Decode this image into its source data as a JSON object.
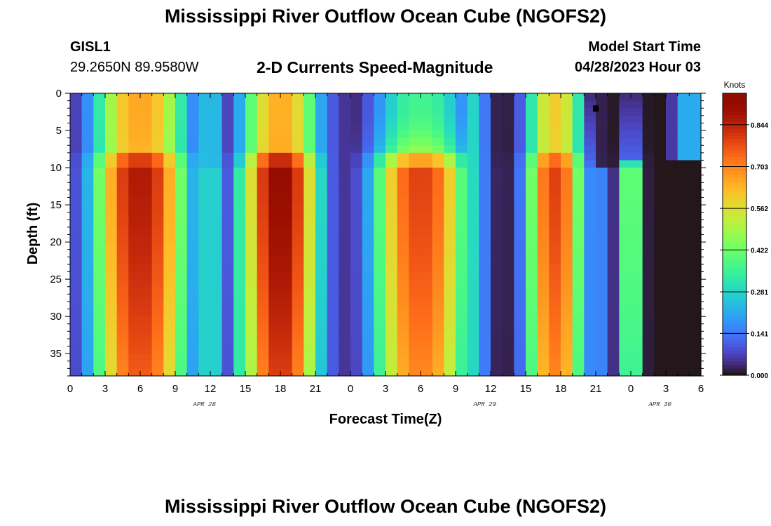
{
  "header": {
    "title": "Mississippi River Outflow Ocean Cube (NGOFS2)",
    "station": "GISL1",
    "coords": "29.2650N  89.9580W",
    "variable": "2-D Currents Speed-Magnitude",
    "model_start_label": "Model Start Time",
    "model_start_value": "04/28/2023 Hour 03"
  },
  "footer": {
    "title": "Mississippi River Outflow Ocean Cube (NGOFS2)"
  },
  "chart_data": {
    "type": "heatmap",
    "title": "2-D Currents Speed-Magnitude",
    "xlabel": "Forecast Time(Z)",
    "ylabel": "Depth (ft)",
    "x_range_hours": [
      0,
      54
    ],
    "y_range_ft": [
      0,
      38
    ],
    "y_inverted": true,
    "x_ticks": [
      "0",
      "3",
      "6",
      "9",
      "12",
      "15",
      "18",
      "21",
      "0",
      "3",
      "6",
      "9",
      "12",
      "15",
      "18",
      "21",
      "0",
      "3",
      "6"
    ],
    "y_ticks": [
      "0",
      "5",
      "10",
      "15",
      "20",
      "25",
      "30",
      "35"
    ],
    "date_labels": [
      {
        "label": "APR 28",
        "hour": 11.5
      },
      {
        "label": "APR 29",
        "hour": 35.5
      },
      {
        "label": "APR 30",
        "hour": 50.5
      }
    ],
    "colorbar": {
      "title": "Knots",
      "ticks": [
        "0.000",
        "0.141",
        "0.281",
        "0.422",
        "0.562",
        "0.703",
        "0.844"
      ],
      "tick_values": [
        0,
        0.141,
        0.281,
        0.422,
        0.562,
        0.703,
        0.844
      ],
      "range": [
        0,
        0.95
      ],
      "colormap": "turbo"
    },
    "field_model": {
      "grid_cols": 54,
      "grid_rows": 38,
      "surface_depth_ft": 10,
      "pulses": [
        {
          "peak_hour": 6,
          "width_hours": 4.0,
          "bottom_peak": 0.87,
          "surface_peak": 0.66
        },
        {
          "peak_hour": 18,
          "width_hours": 3.3,
          "bottom_peak": 0.92,
          "surface_peak": 0.65
        },
        {
          "peak_hour": 30,
          "width_hours": 4.0,
          "bottom_peak": 0.8,
          "surface_peak": 0.36
        },
        {
          "peak_hour": 41.5,
          "width_hours": 2.4,
          "bottom_peak": 0.8,
          "surface_peak": 0.6
        },
        {
          "peak_hour": 48,
          "width_hours": 0.9,
          "bottom_peak": 0.5,
          "surface_peak": 0.12
        }
      ],
      "gap_hours": [
        12,
        15,
        22.5,
        34.5,
        45
      ],
      "gap_depth_values": [
        {
          "hour": 12,
          "surface": 0.3,
          "bottom": 0.35
        },
        {
          "hour": 15,
          "surface": 0.25,
          "bottom": 0.4
        },
        {
          "hour": 22.5,
          "surface": 0.1,
          "bottom": 0.1
        },
        {
          "hour": 34.5,
          "surface": 0.3,
          "bottom": 0.3
        },
        {
          "hour": 45,
          "surface": 0.02,
          "bottom": 0.2
        }
      ],
      "notes_marker": {
        "hour": 45,
        "depth_ft": 2
      }
    }
  }
}
